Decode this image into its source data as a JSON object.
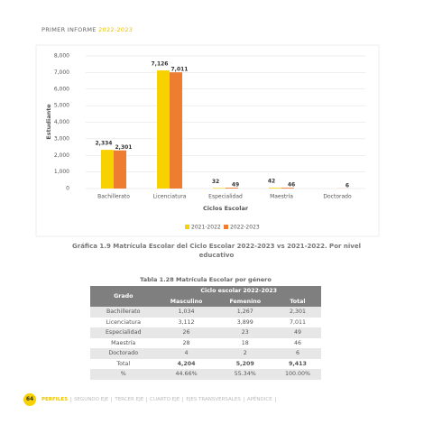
{
  "header": {
    "title": "PRIMER INFORME",
    "years": "2022-2023"
  },
  "chart": {
    "type": "bar",
    "y_label": "Estudiante",
    "x_label": "Ciclos Escolar",
    "categories": [
      "Bachillerato",
      "Licenciatura",
      "Especialidad",
      "Maestría",
      "Doctorado"
    ],
    "series": [
      {
        "name": "2021-2022",
        "color": "#f7d100",
        "values": [
          2334,
          7126,
          32,
          42,
          null
        ],
        "value_labels": [
          "2,334",
          "7,126",
          "32",
          "42",
          null
        ]
      },
      {
        "name": "2022-2023",
        "color": "#ed7d31",
        "values": [
          2301,
          7011,
          49,
          46,
          6
        ],
        "value_labels": [
          "2,301",
          "7,011",
          "49",
          "46",
          "6"
        ]
      }
    ],
    "ylim": [
      0,
      8000
    ],
    "yticks": [
      0,
      {
        "value": 1000,
        "label": "1,000"
      },
      {
        "value": 2000,
        "label": "2,000"
      },
      {
        "value": 3000,
        "label": "3,000"
      },
      {
        "value": 4000,
        "label": "4,000"
      },
      {
        "value": 5000,
        "label": "5,000"
      },
      {
        "value": 6000,
        "label": "6,000"
      },
      {
        "value": 7000,
        "label": "7,000"
      },
      {
        "value": 8000,
        "label": "8,000"
      }
    ],
    "grid": true,
    "legend": "bottom"
  },
  "caption": "Gráfica 1.9 Matrícula Escolar del Ciclo Escolar 2022-2023 vs 2021-2022. Por nivel educativo",
  "table": {
    "title": "Tabla 1.28 Matrícula Escolar por género",
    "grado": "Grado",
    "group": "Ciclo escolar 2022-2023",
    "columns": [
      "Masculino",
      "Femenino",
      "Total"
    ],
    "rows": [
      [
        "Bachillerato",
        "1,034",
        "1,267",
        "2,301"
      ],
      [
        "Licenciatura",
        "3,112",
        "3,899",
        "7,011"
      ],
      [
        "Especialidad",
        "26",
        "23",
        "49"
      ],
      [
        "Maestría",
        "28",
        "18",
        "46"
      ],
      [
        "Doctorado",
        "4",
        "2",
        "6"
      ],
      [
        "Total",
        "4,204",
        "5,209",
        "9,413"
      ],
      [
        "%",
        "44.66%",
        "55.34%",
        "100.00%"
      ]
    ]
  },
  "footer": {
    "page": "64",
    "nav": [
      "PERFILES",
      "SEGUNDO EJE",
      "TERCER EJE",
      "CUARTO EJE",
      "EJES TRANSVERSALES",
      "APÉNDICE"
    ]
  }
}
